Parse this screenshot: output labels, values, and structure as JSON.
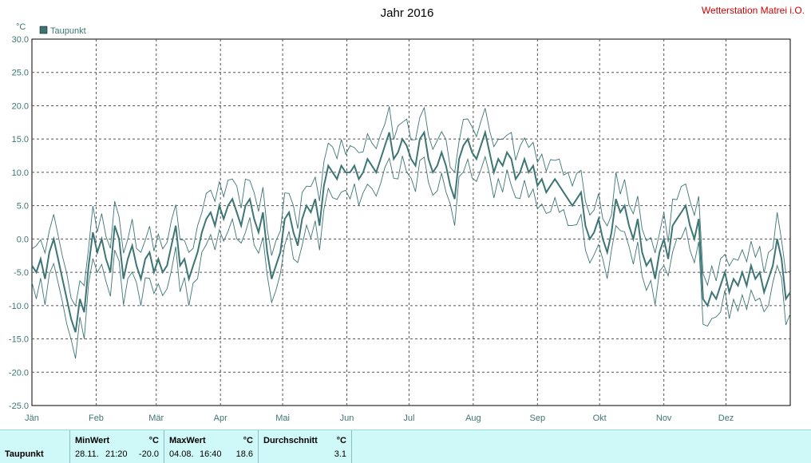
{
  "header": {
    "title": "Jahr 2016",
    "station": "Wetterstation Matrei i.O."
  },
  "chart_data": {
    "type": "line",
    "title": "Jahr 2016",
    "ylabel": "°C",
    "ylim": [
      -25,
      30
    ],
    "yticks": [
      "30.0",
      "25.0",
      "20.0",
      "15.0",
      "10.0",
      "5.0",
      "0.0",
      "-5.0",
      "-10.0",
      "-15.0",
      "-20.0",
      "-25.0"
    ],
    "xticks": [
      "Jän",
      "Feb",
      "Mär",
      "Apr",
      "Mai",
      "Jun",
      "Jul",
      "Aug",
      "Sep",
      "Okt",
      "Nov",
      "Dez"
    ],
    "grid": true,
    "legend": {
      "label": "Taupunkt",
      "color": "#3d7575",
      "placement": "top-left"
    },
    "line_color": "#3d7575",
    "series_daily_mean": [
      -4,
      -5,
      -3,
      -6,
      -2,
      0,
      -3,
      -6,
      -9,
      -12,
      -14,
      -9,
      -11,
      -4,
      1,
      -2,
      0,
      -3,
      -5,
      2,
      0,
      -6,
      -3,
      -1,
      -4,
      -6,
      -3,
      -2,
      -5,
      -3,
      -5,
      -4,
      -1,
      2,
      -4,
      -3,
      -6,
      -4,
      -2,
      1,
      3,
      4,
      2,
      5,
      3,
      5,
      6,
      4,
      2,
      5,
      6,
      3,
      1,
      4,
      -2,
      -6,
      -4,
      -2,
      3,
      4,
      1,
      -1,
      3,
      5,
      4,
      6,
      2,
      8,
      11,
      10,
      9,
      11,
      10,
      10,
      11,
      9,
      10,
      12,
      11,
      10,
      12,
      14,
      16,
      12,
      13,
      15,
      14,
      12,
      11,
      15,
      16,
      12,
      10,
      11,
      13,
      11,
      8,
      6,
      12,
      14,
      15,
      13,
      12,
      14,
      16,
      13,
      10,
      12,
      11,
      13,
      12,
      9,
      10,
      12,
      10,
      11,
      8,
      9,
      7,
      8,
      9,
      8,
      7,
      6,
      5,
      6,
      7,
      2,
      0,
      1,
      3,
      0,
      -2,
      1,
      6,
      4,
      5,
      2,
      0,
      3,
      -2,
      -4,
      -3,
      -6,
      -2,
      0,
      -3,
      2,
      3,
      4,
      5,
      2,
      0,
      3,
      -9,
      -10,
      -8,
      -9,
      -7,
      -5,
      -8,
      -6,
      -7,
      -5,
      -7,
      -4,
      -6,
      -5,
      -8,
      -6,
      -4,
      0,
      -3,
      -9,
      -8
    ],
    "stats": {
      "row_label": "Taupunkt",
      "min": {
        "label": "MinWert",
        "unit": "°C",
        "date": "28.11.",
        "time": "21:20",
        "value": "-20.0"
      },
      "max": {
        "label": "MaxWert",
        "unit": "°C",
        "date": "04.08.",
        "time": "16:40",
        "value": "18.6"
      },
      "avg": {
        "label": "Durchschnitt",
        "unit": "°C",
        "value": "3.1"
      }
    }
  }
}
